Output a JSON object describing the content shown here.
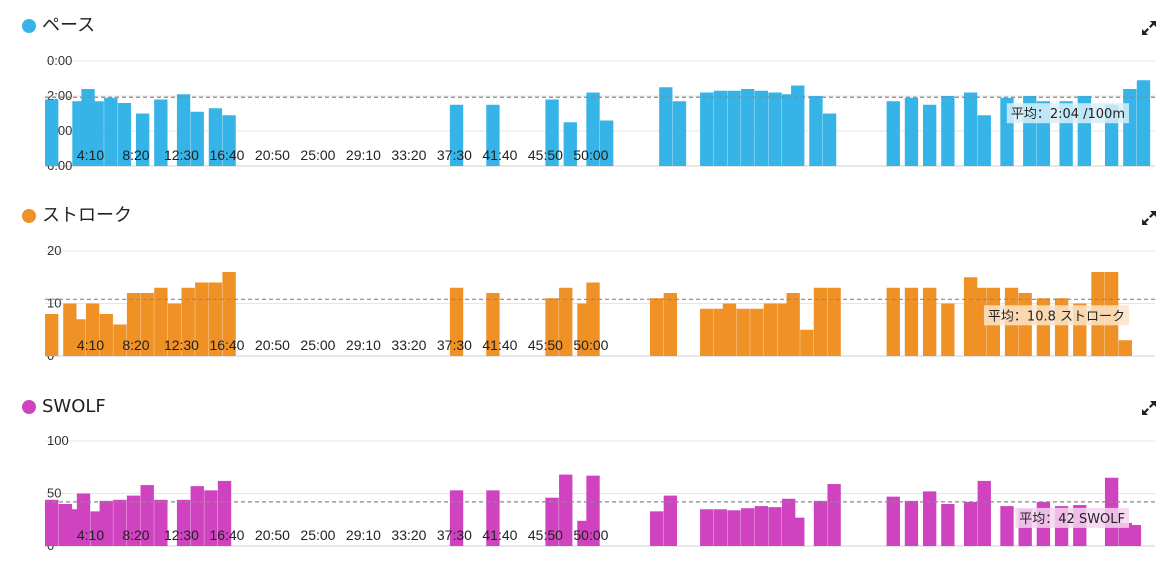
{
  "x_ticks": [
    "4:10",
    "8:20",
    "12:30",
    "16:40",
    "20:50",
    "25:00",
    "29:10",
    "33:20",
    "37:30",
    "41:40",
    "45:50",
    "50:00"
  ],
  "chart_data": [
    {
      "type": "bar",
      "title": "ペース",
      "color": "#36b4e8",
      "avg_fill": "#d7eef9",
      "y_ticks": [
        "0:00",
        "2:00",
        "4:00",
        "6:00"
      ],
      "ylim": [
        0,
        6
      ],
      "y_reversed": true,
      "average": 2.07,
      "average_label": "平均：2:04 /100m",
      "bars": [
        [
          0.0,
          2.2
        ],
        [
          0.6,
          2.3
        ],
        [
          0.8,
          1.6
        ],
        [
          1.0,
          2.3
        ],
        [
          1.3,
          2.1
        ],
        [
          1.6,
          2.4
        ],
        [
          2.0,
          3.0
        ],
        [
          2.4,
          2.2
        ],
        [
          2.9,
          1.9
        ],
        [
          3.2,
          2.9
        ],
        [
          3.6,
          2.7
        ],
        [
          3.9,
          3.1
        ],
        [
          8.9,
          2.5
        ],
        [
          9.7,
          2.5
        ],
        [
          11.0,
          2.2
        ],
        [
          11.4,
          3.5
        ],
        [
          11.9,
          1.8
        ],
        [
          12.2,
          3.4
        ],
        [
          13.5,
          1.5
        ],
        [
          13.8,
          2.3
        ],
        [
          14.4,
          1.8
        ],
        [
          14.7,
          1.7
        ],
        [
          15.0,
          1.7
        ],
        [
          15.3,
          1.6
        ],
        [
          15.6,
          1.7
        ],
        [
          15.9,
          1.8
        ],
        [
          16.2,
          1.9
        ],
        [
          16.4,
          1.4
        ],
        [
          16.8,
          2.0
        ],
        [
          17.1,
          3.0
        ],
        [
          18.5,
          2.3
        ],
        [
          18.9,
          2.1
        ],
        [
          19.3,
          2.5
        ],
        [
          19.7,
          2.0
        ],
        [
          20.2,
          1.8
        ],
        [
          20.5,
          3.1
        ],
        [
          21.0,
          2.1
        ],
        [
          21.5,
          2.0
        ],
        [
          21.8,
          2.3
        ],
        [
          22.3,
          2.3
        ],
        [
          22.7,
          2.0
        ],
        [
          23.3,
          2.5
        ],
        [
          23.7,
          1.6
        ],
        [
          24.0,
          1.1
        ]
      ]
    },
    {
      "type": "bar",
      "title": "ストローク",
      "color": "#ef9124",
      "avg_fill": "#fbe4c8",
      "y_ticks": [
        "20",
        "10",
        "0"
      ],
      "ylim": [
        0,
        20
      ],
      "y_reversed": false,
      "average": 10.8,
      "average_label": "平均：10.8 ストローク",
      "bars": [
        [
          0.0,
          8
        ],
        [
          0.4,
          10
        ],
        [
          0.6,
          7
        ],
        [
          0.9,
          10
        ],
        [
          1.2,
          8
        ],
        [
          1.5,
          6
        ],
        [
          1.8,
          12
        ],
        [
          2.1,
          12
        ],
        [
          2.4,
          13
        ],
        [
          2.7,
          10
        ],
        [
          3.0,
          13
        ],
        [
          3.3,
          14
        ],
        [
          3.6,
          14
        ],
        [
          3.9,
          16
        ],
        [
          8.9,
          13
        ],
        [
          9.7,
          12
        ],
        [
          11.0,
          11
        ],
        [
          11.3,
          13
        ],
        [
          11.7,
          10
        ],
        [
          11.9,
          14
        ],
        [
          13.3,
          11
        ],
        [
          13.6,
          12
        ],
        [
          14.4,
          9
        ],
        [
          14.7,
          9
        ],
        [
          14.9,
          10
        ],
        [
          15.2,
          9
        ],
        [
          15.5,
          9
        ],
        [
          15.8,
          10
        ],
        [
          16.1,
          10
        ],
        [
          16.3,
          12
        ],
        [
          16.6,
          5
        ],
        [
          16.9,
          13
        ],
        [
          17.2,
          13
        ],
        [
          18.5,
          13
        ],
        [
          18.9,
          13
        ],
        [
          19.3,
          13
        ],
        [
          19.7,
          10
        ],
        [
          20.2,
          15
        ],
        [
          20.4,
          13
        ],
        [
          20.7,
          13
        ],
        [
          21.1,
          13
        ],
        [
          21.4,
          12
        ],
        [
          21.8,
          11
        ],
        [
          22.2,
          11
        ],
        [
          22.6,
          10
        ],
        [
          23.0,
          16
        ],
        [
          23.3,
          16
        ],
        [
          23.6,
          3
        ]
      ]
    },
    {
      "type": "bar",
      "title": "SWOLF",
      "color": "#cf42c0",
      "avg_fill": "#f4d3ef",
      "y_ticks": [
        "100",
        "50",
        "0"
      ],
      "ylim": [
        0,
        100
      ],
      "y_reversed": false,
      "average": 42,
      "average_label": "平均：42 SWOLF",
      "bars": [
        [
          0.0,
          44
        ],
        [
          0.3,
          40
        ],
        [
          0.5,
          35
        ],
        [
          0.7,
          50
        ],
        [
          1.0,
          33
        ],
        [
          1.2,
          43
        ],
        [
          1.5,
          44
        ],
        [
          1.8,
          48
        ],
        [
          2.1,
          58
        ],
        [
          2.4,
          44
        ],
        [
          2.9,
          44
        ],
        [
          3.2,
          57
        ],
        [
          3.5,
          53
        ],
        [
          3.8,
          62
        ],
        [
          8.9,
          53
        ],
        [
          9.7,
          53
        ],
        [
          11.0,
          46
        ],
        [
          11.3,
          68
        ],
        [
          11.7,
          24
        ],
        [
          11.9,
          67
        ],
        [
          13.3,
          33
        ],
        [
          13.6,
          48
        ],
        [
          14.4,
          35
        ],
        [
          14.7,
          35
        ],
        [
          15.0,
          34
        ],
        [
          15.3,
          36
        ],
        [
          15.6,
          38
        ],
        [
          15.9,
          37
        ],
        [
          16.2,
          45
        ],
        [
          16.4,
          27
        ],
        [
          16.9,
          43
        ],
        [
          17.2,
          59
        ],
        [
          18.5,
          47
        ],
        [
          18.9,
          43
        ],
        [
          19.3,
          52
        ],
        [
          19.7,
          40
        ],
        [
          20.2,
          42
        ],
        [
          20.5,
          62
        ],
        [
          21.0,
          38
        ],
        [
          21.4,
          35
        ],
        [
          21.8,
          42
        ],
        [
          22.2,
          38
        ],
        [
          22.6,
          39
        ],
        [
          23.3,
          65
        ],
        [
          23.6,
          22
        ],
        [
          23.8,
          20
        ]
      ]
    }
  ]
}
